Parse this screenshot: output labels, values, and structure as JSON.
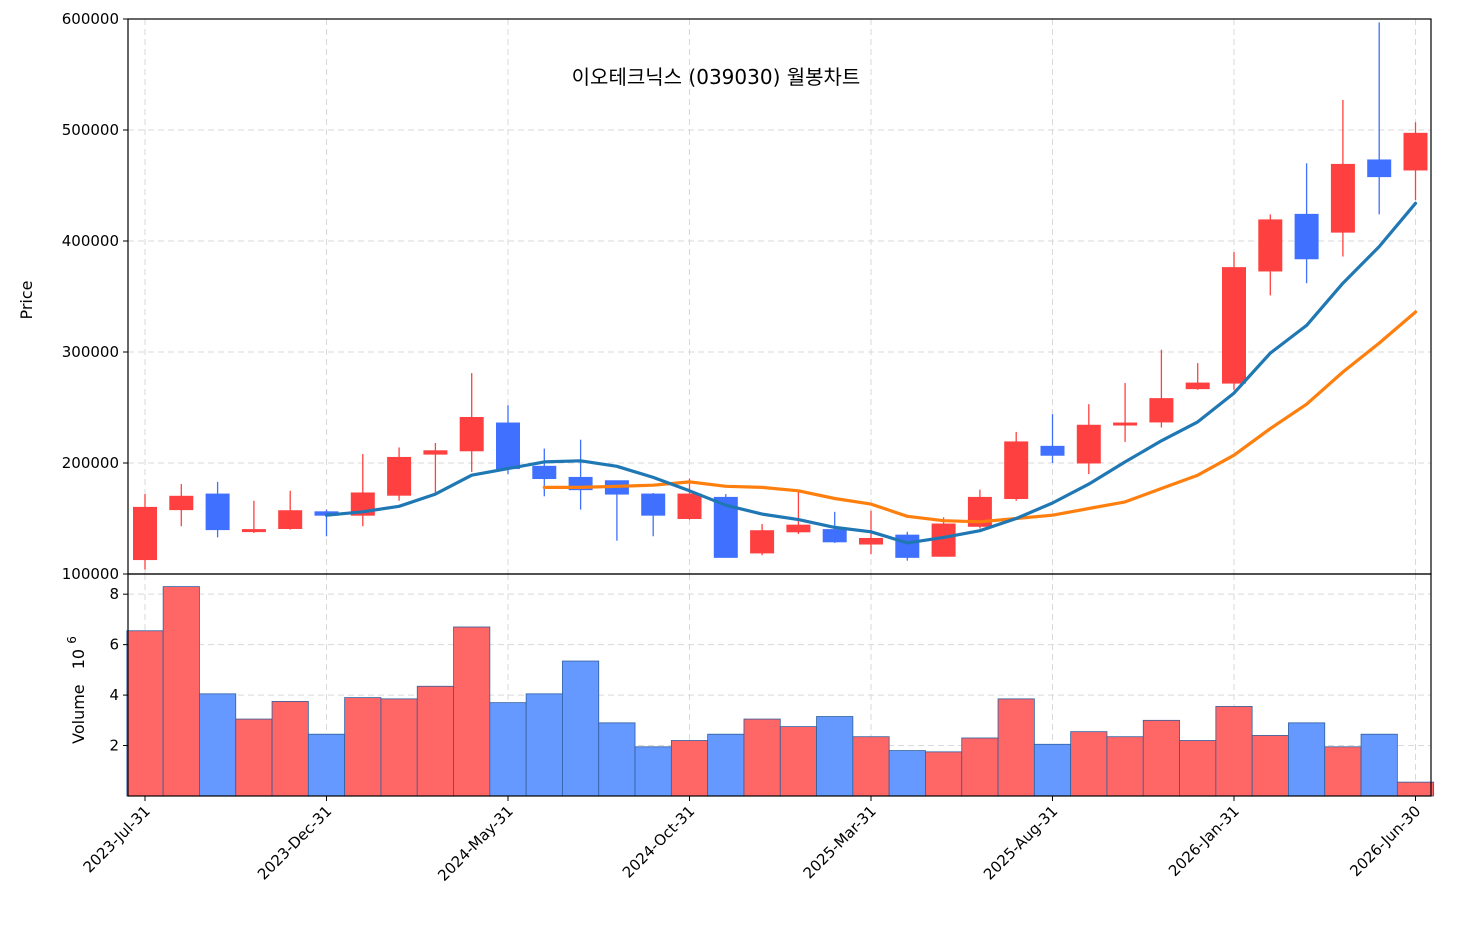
{
  "chart_data": {
    "type": "candlestick",
    "title": "이오테크닉스 (039030) 월봉차트",
    "ylabel": "Price",
    "volume_label": "Volume",
    "volume_exponent_base": "10",
    "volume_exponent_power": "6",
    "ylim": [
      100000,
      600000
    ],
    "volume_ylim": [
      0,
      8.8
    ],
    "grid": true,
    "colors": {
      "up": "#ff4040",
      "down": "#4070ff",
      "vol_up": "#ff6666",
      "vol_down": "#6699ff",
      "ma_short": "#1f77b4",
      "ma_long": "#ff7f0e"
    },
    "y_ticks": [
      "100000",
      "200000",
      "300000",
      "400000",
      "500000",
      "600000"
    ],
    "y_tick_values": [
      100000,
      200000,
      300000,
      400000,
      500000,
      600000
    ],
    "volume_ticks": [
      "2",
      "4",
      "6",
      "8"
    ],
    "volume_tick_values": [
      2,
      4,
      6,
      8
    ],
    "x_tick_labels": [
      "2023-Jul-31",
      "2023-Dec-31",
      "2024-May-31",
      "2024-Oct-31",
      "2025-Mar-31",
      "2025-Aug-31",
      "2026-Jan-31",
      "2026-Jun-30"
    ],
    "dates": [
      "2023-Jul-31",
      "2023-Aug-31",
      "2023-Sep-30",
      "2023-Oct-31",
      "2023-Nov-30",
      "2023-Dec-31",
      "2024-Jan-31",
      "2024-Feb-29",
      "2024-Mar-31",
      "2024-Apr-30",
      "2024-May-31",
      "2024-Jun-30",
      "2024-Jul-31",
      "2024-Aug-31",
      "2024-Sep-30",
      "2024-Oct-31",
      "2024-Nov-30",
      "2024-Dec-31",
      "2025-Jan-31",
      "2025-Feb-28",
      "2025-Mar-31",
      "2025-Apr-30",
      "2025-May-31",
      "2025-Jun-30",
      "2025-Jul-31",
      "2025-Aug-31",
      "2025-Sep-30",
      "2025-Oct-31",
      "2025-Nov-30",
      "2025-Dec-31",
      "2026-Jan-31",
      "2026-Feb-28",
      "2026-Mar-31",
      "2026-Apr-30",
      "2026-May-31",
      "2026-Jun-30"
    ],
    "open": [
      113000,
      158000,
      172000,
      139000,
      141000,
      156000,
      153000,
      171000,
      208000,
      211000,
      236000,
      197000,
      187000,
      184000,
      172000,
      150000,
      169000,
      119000,
      138000,
      140000,
      127000,
      135000,
      116000,
      143000,
      168000,
      215000,
      200000,
      236000,
      237000,
      267000,
      272000,
      373000,
      424000,
      408000,
      473000,
      464000
    ],
    "high": [
      172000,
      181000,
      183000,
      166000,
      175000,
      158000,
      208000,
      214000,
      218000,
      281000,
      252000,
      213000,
      221000,
      184000,
      173000,
      186000,
      172000,
      145000,
      174000,
      156000,
      157000,
      138000,
      151000,
      176000,
      228000,
      244000,
      253000,
      272000,
      302000,
      290000,
      390000,
      424000,
      470000,
      527000,
      597000,
      507000
    ],
    "low": [
      104000,
      143000,
      133000,
      137000,
      140000,
      134000,
      143000,
      166000,
      173000,
      192000,
      190000,
      170000,
      158000,
      130000,
      134000,
      149000,
      115000,
      117000,
      136000,
      128000,
      118000,
      112000,
      116000,
      141000,
      166000,
      200000,
      190000,
      219000,
      232000,
      266000,
      266000,
      351000,
      362000,
      386000,
      424000,
      437000
    ],
    "close": [
      160000,
      170000,
      140000,
      140000,
      157000,
      153000,
      173000,
      205000,
      211000,
      241000,
      195000,
      186000,
      176000,
      172000,
      153000,
      172000,
      115000,
      139000,
      144000,
      129000,
      132000,
      115000,
      145000,
      169000,
      219000,
      207000,
      234000,
      236000,
      258000,
      272000,
      376000,
      419000,
      384000,
      469000,
      458000,
      497000
    ],
    "volume": [
      6.55,
      8.3,
      4.05,
      3.05,
      3.75,
      2.45,
      3.9,
      3.85,
      4.35,
      6.7,
      3.7,
      4.05,
      5.35,
      2.9,
      1.95,
      2.2,
      2.45,
      3.05,
      2.75,
      3.15,
      2.35,
      1.8,
      1.75,
      2.3,
      3.85,
      2.05,
      2.55,
      2.35,
      3.0,
      2.2,
      3.55,
      2.4,
      2.9,
      1.95,
      2.45,
      0.55
    ],
    "ma_short": [
      null,
      null,
      null,
      null,
      null,
      153000,
      156000,
      161000,
      172000,
      189000,
      195000,
      201000,
      202000,
      197000,
      187000,
      175000,
      162000,
      154000,
      149000,
      142000,
      138000,
      128000,
      133000,
      139000,
      150000,
      164000,
      181000,
      201000,
      220000,
      237000,
      263000,
      299000,
      324000,
      362000,
      395000,
      434000
    ],
    "ma_long": [
      null,
      null,
      null,
      null,
      null,
      null,
      null,
      null,
      null,
      null,
      null,
      178000,
      178000,
      179000,
      180000,
      183000,
      179000,
      178000,
      175000,
      168000,
      163000,
      152000,
      148000,
      147000,
      150000,
      153000,
      159000,
      165000,
      177000,
      189000,
      207000,
      231000,
      253000,
      282000,
      308000,
      336000
    ]
  }
}
